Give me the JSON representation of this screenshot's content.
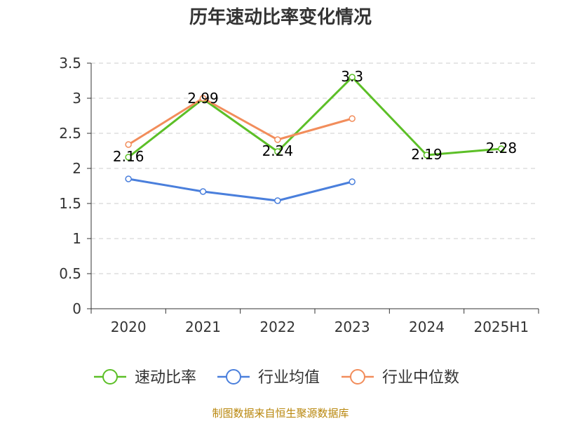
{
  "chart_data": {
    "type": "line",
    "title": "历年速动比率变化情况",
    "categories": [
      "2020",
      "2021",
      "2022",
      "2023",
      "2024",
      "2025H1"
    ],
    "ylim": [
      0,
      3.5
    ],
    "yticks": [
      "0",
      "0.5",
      "1",
      "1.5",
      "2",
      "2.5",
      "3",
      "3.5"
    ],
    "grid": true,
    "legend_position": "bottom",
    "series": [
      {
        "name": "速动比率",
        "color": "#5cbf27",
        "values": [
          2.16,
          2.99,
          2.24,
          3.3,
          2.19,
          2.28
        ],
        "labels": [
          "2.16",
          "2.99",
          "2.24",
          "3.3",
          "2.19",
          "2.28"
        ],
        "show_labels": true
      },
      {
        "name": "行业均值",
        "color": "#4a7fdc",
        "values": [
          1.85,
          1.67,
          1.54,
          1.81,
          null,
          null
        ],
        "show_labels": false
      },
      {
        "name": "行业中位数",
        "color": "#f28d5b",
        "values": [
          2.34,
          3.0,
          2.41,
          2.71,
          null,
          null
        ],
        "show_labels": false
      }
    ]
  },
  "source_note": "制图数据来自恒生聚源数据库"
}
